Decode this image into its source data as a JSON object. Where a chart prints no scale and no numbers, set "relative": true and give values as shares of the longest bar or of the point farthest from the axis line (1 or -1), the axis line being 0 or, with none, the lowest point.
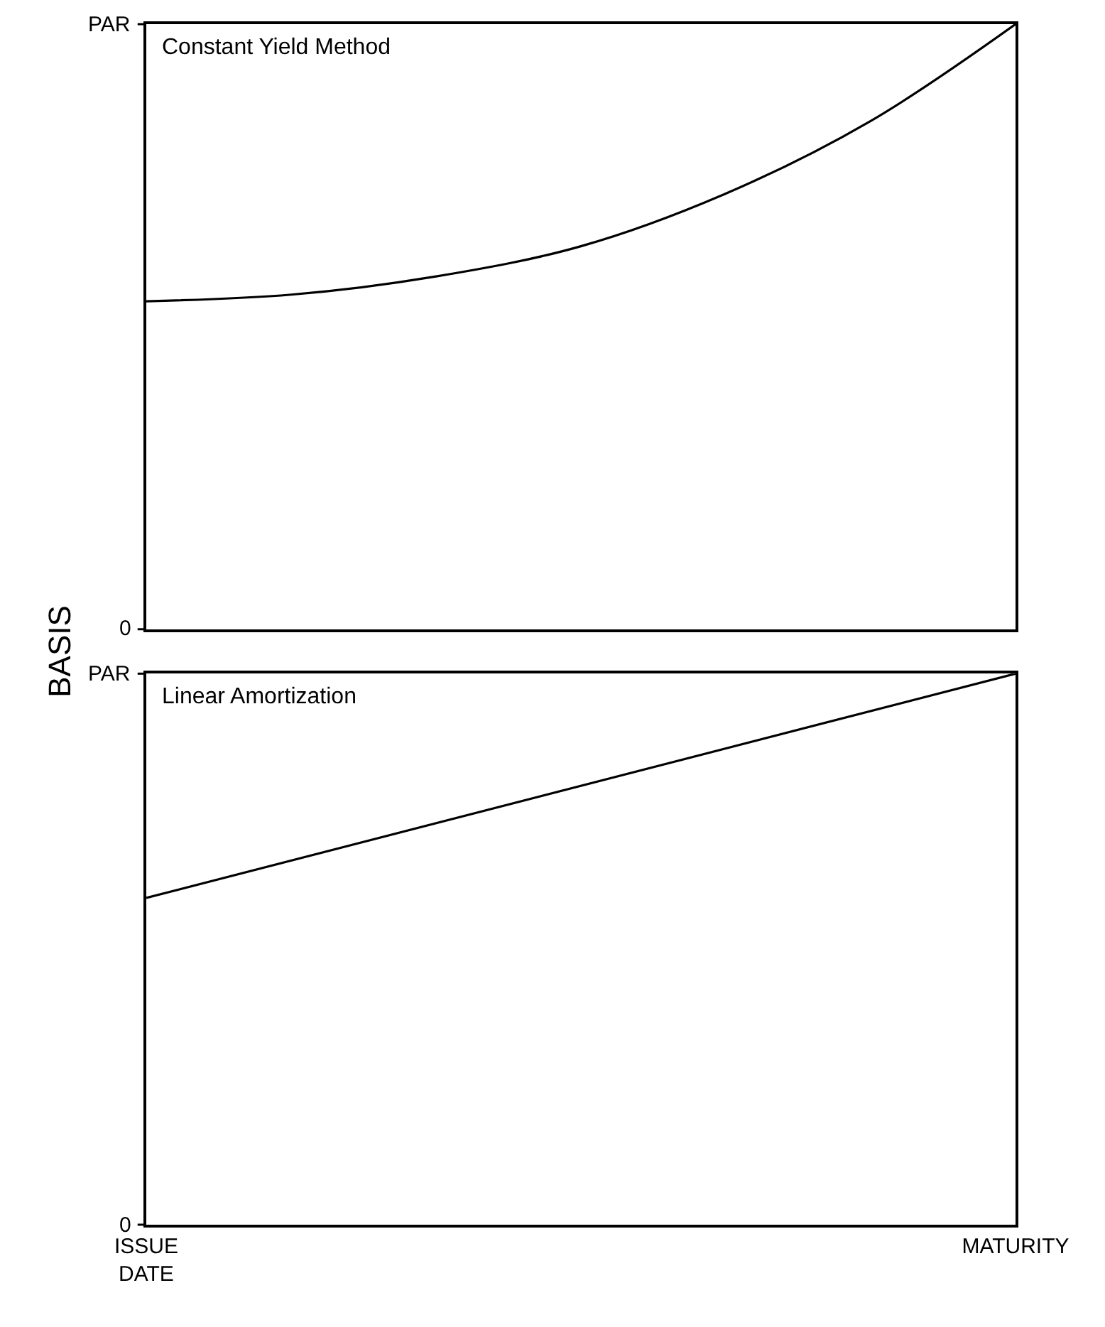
{
  "chart_data": [
    {
      "type": "line",
      "relative": true,
      "title": "Constant Yield Method",
      "ylabel": "BASIS",
      "categories": [
        null,
        null,
        null,
        null,
        null,
        null,
        null
      ],
      "annotations": [
        "PAR",
        "0"
      ],
      "series": [
        {
          "color": "#000000",
          "values": [
            0.542,
            0.553,
            0.583,
            0.633,
            0.72,
            0.84,
            1.0
          ]
        }
      ]
    },
    {
      "type": "line",
      "relative": true,
      "title": "Linear Amortization",
      "categories": [
        "ISSUE\nDATE",
        "MATURITY"
      ],
      "annotations": [
        "PAR",
        "0"
      ],
      "series": [
        {
          "color": "#000000",
          "values": [
            0.593,
            1.0
          ]
        }
      ]
    }
  ]
}
